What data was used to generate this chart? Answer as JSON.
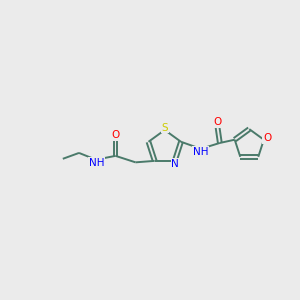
{
  "bg_color": "#ebebeb",
  "bond_color": "#4a7a6a",
  "N_color": "#0000ff",
  "O_color": "#ff0000",
  "S_color": "#cccc00",
  "font_size": 7.5,
  "line_width": 1.4,
  "figsize": [
    3.0,
    3.0
  ],
  "dpi": 100,
  "xlim": [
    0,
    10
  ],
  "ylim": [
    0,
    10
  ]
}
